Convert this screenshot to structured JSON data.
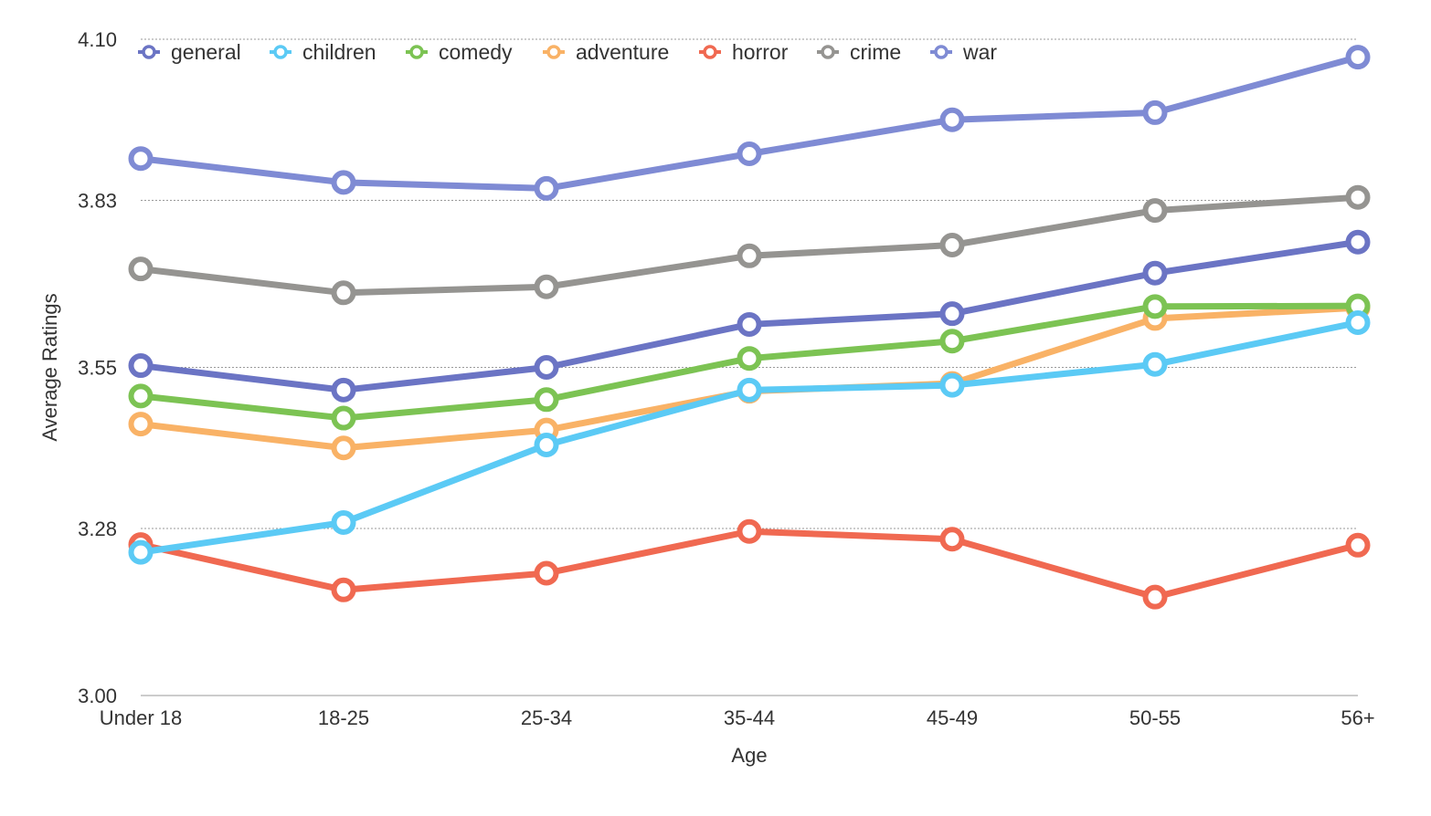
{
  "chart_data": {
    "type": "line",
    "xlabel": "Age",
    "ylabel": "Average Ratings",
    "categories": [
      "Under 18",
      "18-25",
      "25-34",
      "35-44",
      "45-49",
      "50-55",
      "56+"
    ],
    "ylim": [
      3.0,
      4.1
    ],
    "yticks": [
      "3.00",
      "3.28",
      "3.55",
      "3.83",
      "4.10"
    ],
    "grid": "horizontal dotted",
    "legend_position": "top",
    "series": [
      {
        "name": "general",
        "color": "#6b74c4",
        "values": [
          3.553,
          3.512,
          3.55,
          3.622,
          3.64,
          3.708,
          3.76
        ]
      },
      {
        "name": "children",
        "color": "#5bcaf5",
        "values": [
          3.24,
          3.29,
          3.42,
          3.512,
          3.52,
          3.555,
          3.625
        ]
      },
      {
        "name": "comedy",
        "color": "#7cc353",
        "values": [
          3.502,
          3.465,
          3.496,
          3.565,
          3.594,
          3.652,
          3.653
        ]
      },
      {
        "name": "adventure",
        "color": "#f9b266",
        "values": [
          3.455,
          3.415,
          3.445,
          3.51,
          3.523,
          3.632,
          3.65
        ]
      },
      {
        "name": "horror",
        "color": "#f06951",
        "values": [
          3.253,
          3.177,
          3.205,
          3.275,
          3.262,
          3.165,
          3.252
        ]
      },
      {
        "name": "crime",
        "color": "#959491",
        "values": [
          3.715,
          3.675,
          3.685,
          3.737,
          3.755,
          3.813,
          3.835
        ]
      },
      {
        "name": "war",
        "color": "#7f8bd4",
        "values": [
          3.9,
          3.86,
          3.85,
          3.908,
          3.965,
          3.977,
          4.07
        ]
      }
    ]
  }
}
